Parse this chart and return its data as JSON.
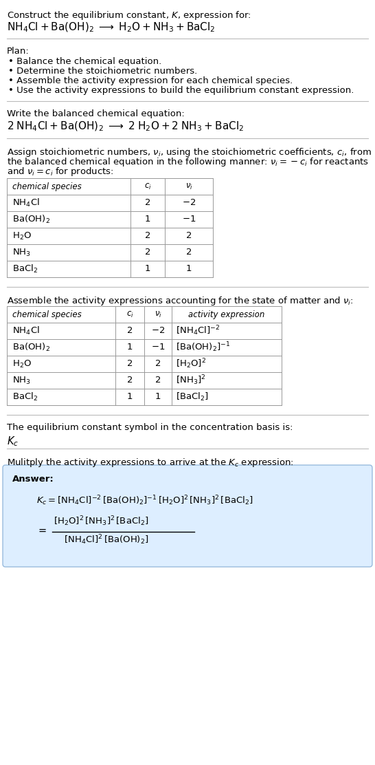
{
  "bg_color": "#ffffff",
  "text_color": "#000000",
  "divider_color": "#bbbbbb",
  "table_border_color": "#999999",
  "answer_box_color": "#ddeeff",
  "answer_box_edge": "#99bbdd",
  "font_size": 9.5,
  "font_size_small": 8.5,
  "font_size_large": 11.0,
  "sections": {
    "title1": "Construct the equilibrium constant, $K$, expression for:",
    "title2": "$\\mathrm{NH_4Cl + Ba(OH)_2 \\;\\longrightarrow\\; H_2O + NH_3 + BaCl_2}$",
    "plan_header": "Plan:",
    "plan_items": [
      "Balance the chemical equation.",
      "Determine the stoichiometric numbers.",
      "Assemble the activity expression for each chemical species.",
      "Use the activity expressions to build the equilibrium constant expression."
    ],
    "balanced_header": "Write the balanced chemical equation:",
    "balanced_eq": "$\\mathrm{2\\; NH_4Cl + Ba(OH)_2 \\;\\longrightarrow\\; 2\\; H_2O + 2\\; NH_3 + BaCl_2}$",
    "stoich_line1": "Assign stoichiometric numbers, $\\nu_i$, using the stoichiometric coefficients, $c_i$, from",
    "stoich_line2": "the balanced chemical equation in the following manner: $\\nu_i = -c_i$ for reactants",
    "stoich_line3": "and $\\nu_i = c_i$ for products:",
    "table1_col_headers": [
      "chemical species",
      "$c_i$",
      "$\\nu_i$"
    ],
    "table1_rows": [
      [
        "$\\mathrm{NH_4Cl}$",
        "2",
        "$-2$"
      ],
      [
        "$\\mathrm{Ba(OH)_2}$",
        "1",
        "$-1$"
      ],
      [
        "$\\mathrm{H_2O}$",
        "2",
        "$2$"
      ],
      [
        "$\\mathrm{NH_3}$",
        "2",
        "$2$"
      ],
      [
        "$\\mathrm{BaCl_2}$",
        "1",
        "$1$"
      ]
    ],
    "activity_header": "Assemble the activity expressions accounting for the state of matter and $\\nu_i$:",
    "table2_col_headers": [
      "chemical species",
      "$c_i$",
      "$\\nu_i$",
      "activity expression"
    ],
    "table2_rows": [
      [
        "$\\mathrm{NH_4Cl}$",
        "2",
        "$-2$",
        "$[\\mathrm{NH_4Cl}]^{-2}$"
      ],
      [
        "$\\mathrm{Ba(OH)_2}$",
        "1",
        "$-1$",
        "$[\\mathrm{Ba(OH)_2}]^{-1}$"
      ],
      [
        "$\\mathrm{H_2O}$",
        "2",
        "$2$",
        "$[\\mathrm{H_2O}]^{2}$"
      ],
      [
        "$\\mathrm{NH_3}$",
        "2",
        "$2$",
        "$[\\mathrm{NH_3}]^{2}$"
      ],
      [
        "$\\mathrm{BaCl_2}$",
        "1",
        "$1$",
        "$[\\mathrm{BaCl_2}]$"
      ]
    ],
    "kc_header": "The equilibrium constant symbol in the concentration basis is:",
    "kc_symbol": "$K_c$",
    "multiply_header": "Mulitply the activity expressions to arrive at the $K_c$ expression:",
    "answer_label": "Answer:",
    "ans_line1": "$K_c = [\\mathrm{NH_4Cl}]^{-2}\\,[\\mathrm{Ba(OH)_2}]^{-1}\\,[\\mathrm{H_2O}]^{2}\\,[\\mathrm{NH_3}]^{2}\\,[\\mathrm{BaCl_2}]$",
    "ans_num": "$[\\mathrm{H_2O}]^{2}\\,[\\mathrm{NH_3}]^{2}\\,[\\mathrm{BaCl_2}]$",
    "ans_den": "$[\\mathrm{NH_4Cl}]^{2}\\,[\\mathrm{Ba(OH)_2}]$",
    "ans_eq": "$=$"
  }
}
